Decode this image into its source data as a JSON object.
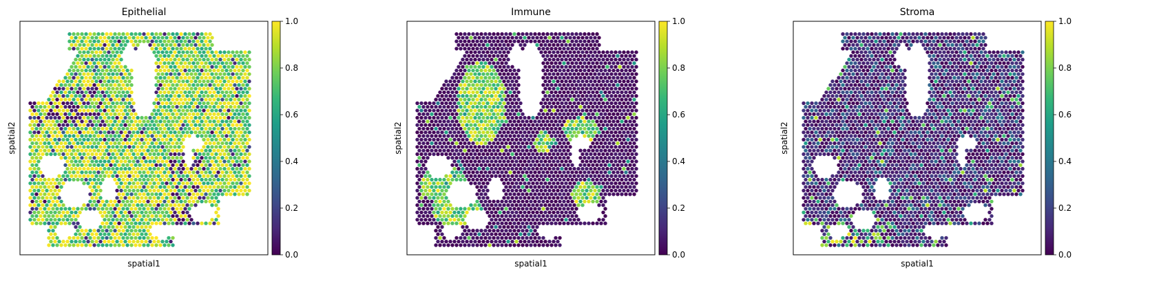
{
  "chart_data": [
    {
      "type": "scatter",
      "title": "Epithelial",
      "xlabel": "spatial1",
      "ylabel": "spatial2",
      "colorbar": {
        "min": 0.0,
        "max": 1.0,
        "ticks": [
          "0.0",
          "0.2",
          "0.4",
          "0.6",
          "0.8",
          "1.0"
        ]
      },
      "axis_ticks": false,
      "dominant_range": [
        0.5,
        1.0
      ]
    },
    {
      "type": "scatter",
      "title": "Immune",
      "xlabel": "spatial1",
      "ylabel": "spatial2",
      "colorbar": {
        "min": 0.0,
        "max": 1.0,
        "ticks": [
          "0.0",
          "0.2",
          "0.4",
          "0.6",
          "0.8",
          "1.0"
        ]
      },
      "axis_ticks": false,
      "dominant_range": [
        0.0,
        0.15
      ]
    },
    {
      "type": "scatter",
      "title": "Stroma",
      "xlabel": "spatial1",
      "ylabel": "spatial2",
      "colorbar": {
        "min": 0.0,
        "max": 1.0,
        "ticks": [
          "0.0",
          "0.2",
          "0.4",
          "0.6",
          "0.8",
          "1.0"
        ]
      },
      "axis_ticks": false,
      "dominant_range": [
        0.0,
        0.3
      ]
    }
  ],
  "colormap": [
    "#440154",
    "#482878",
    "#3e4a89",
    "#31688e",
    "#26828e",
    "#1f9e89",
    "#35b779",
    "#6ece58",
    "#b5de2b",
    "#fde725"
  ]
}
